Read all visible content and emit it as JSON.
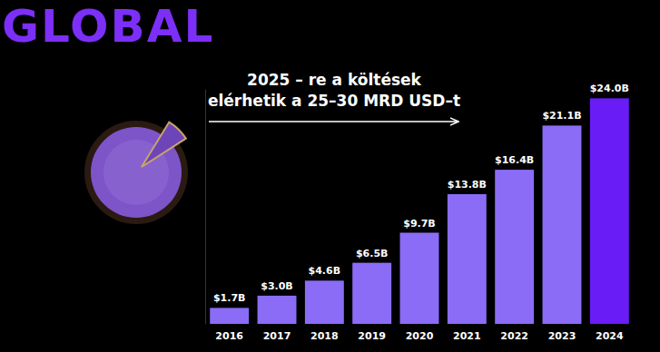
{
  "chart_data": {
    "type": "bar",
    "title": "GLOBAL",
    "annotation": [
      "2025 – re a költések",
      "elérhetik a 25–30 MRD USD–t"
    ],
    "categories": [
      "2016",
      "2017",
      "2018",
      "2019",
      "2020",
      "2021",
      "2022",
      "2023",
      "2024"
    ],
    "values": [
      1.7,
      3.0,
      4.6,
      6.5,
      9.7,
      13.8,
      16.4,
      21.1,
      24.0
    ],
    "value_labels": [
      "$1.7B",
      "$3.0B",
      "$4.6B",
      "$6.5B",
      "$9.7B",
      "$13.8B",
      "$16.4B",
      "$21.1B",
      "$24.0B"
    ],
    "colors": [
      "#8b6cf6",
      "#8b6cf6",
      "#8b6cf6",
      "#8b6cf6",
      "#8b6cf6",
      "#8b6cf6",
      "#8b6cf6",
      "#8b6cf6",
      "#6a1cf6"
    ],
    "ylim": [
      0,
      25
    ],
    "yticks": [],
    "grid": false,
    "data_labels": true,
    "tick_labels": "x"
  }
}
